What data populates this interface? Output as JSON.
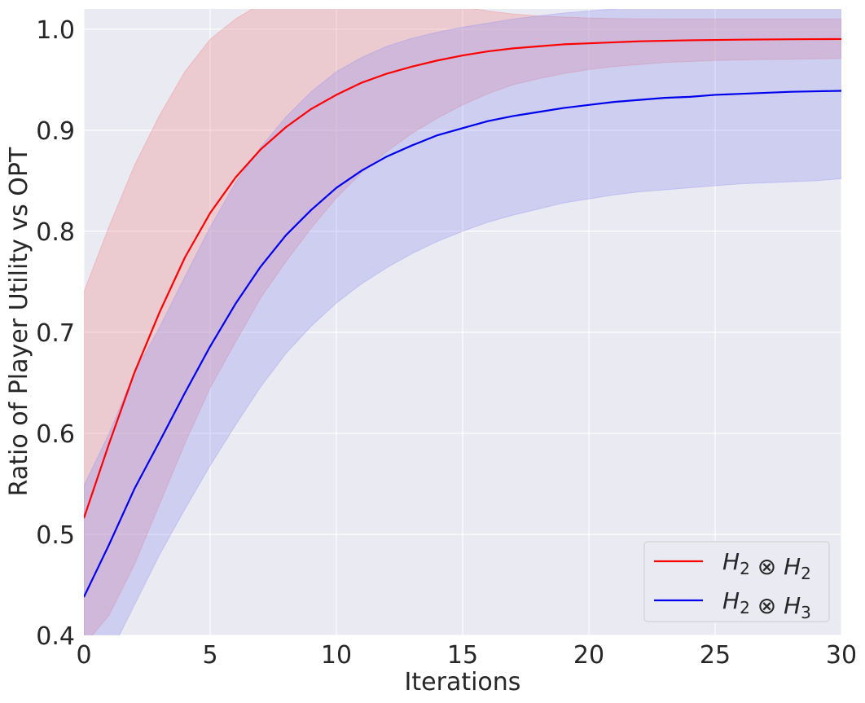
{
  "chart_data": {
    "type": "line",
    "xlabel": "Iterations",
    "ylabel": "Ratio of Player Utility vs OPT",
    "xlim": [
      0,
      30
    ],
    "ylim": [
      0.4,
      1.02
    ],
    "xticks": [
      0,
      5,
      10,
      15,
      20,
      25,
      30
    ],
    "xtick_labels": [
      "0",
      "5",
      "10",
      "15",
      "20",
      "25",
      "30"
    ],
    "yticks": [
      0.4,
      0.5,
      0.6,
      0.7,
      0.8,
      0.9,
      1.0
    ],
    "ytick_labels": [
      "0.4",
      "0.5",
      "0.6",
      "0.7",
      "0.8",
      "0.9",
      "1.0"
    ],
    "grid": true,
    "background": "#eaeaf2",
    "legend_position": "bottom-right",
    "x": [
      0,
      1,
      2,
      3,
      4,
      5,
      6,
      7,
      8,
      9,
      10,
      11,
      12,
      13,
      14,
      15,
      16,
      17,
      18,
      19,
      20,
      21,
      22,
      23,
      24,
      25,
      26,
      27,
      28,
      29,
      30
    ],
    "series": [
      {
        "legend_base": "H",
        "legend_sub1": "2",
        "legend_op": "⊗",
        "legend_sub2": "2",
        "color": "#ff0000",
        "band_color": "#f08080",
        "values": [
          0.516,
          0.59,
          0.66,
          0.72,
          0.774,
          0.818,
          0.853,
          0.881,
          0.903,
          0.921,
          0.935,
          0.947,
          0.956,
          0.963,
          0.969,
          0.974,
          0.978,
          0.981,
          0.983,
          0.985,
          0.986,
          0.987,
          0.988,
          0.9885,
          0.989,
          0.9893,
          0.9896,
          0.9898,
          0.99,
          0.9901,
          0.9902
        ],
        "lower": [
          0.39,
          0.42,
          0.47,
          0.53,
          0.59,
          0.645,
          0.69,
          0.734,
          0.77,
          0.803,
          0.833,
          0.858,
          0.879,
          0.897,
          0.912,
          0.925,
          0.936,
          0.945,
          0.951,
          0.956,
          0.96,
          0.963,
          0.965,
          0.967,
          0.968,
          0.969,
          0.9695,
          0.97,
          0.9703,
          0.9706,
          0.971
        ],
        "upper": [
          0.74,
          0.805,
          0.865,
          0.915,
          0.958,
          0.99,
          1.01,
          1.025,
          1.03,
          1.032,
          1.033,
          1.032,
          1.03,
          1.028,
          1.026,
          1.022,
          1.018,
          1.015,
          1.013,
          1.012,
          1.011,
          1.0105,
          1.0102,
          1.0101,
          1.0101,
          1.0101,
          1.0101,
          1.0101,
          1.0101,
          1.0101,
          1.0101
        ]
      },
      {
        "legend_base": "H",
        "legend_sub1": "2",
        "legend_op": "⊗",
        "legend_sub2": "3",
        "color": "#0000ee",
        "band_color": "#8f8ff0",
        "values": [
          0.438,
          0.49,
          0.545,
          0.592,
          0.64,
          0.686,
          0.728,
          0.765,
          0.796,
          0.821,
          0.843,
          0.86,
          0.874,
          0.885,
          0.895,
          0.902,
          0.909,
          0.914,
          0.918,
          0.922,
          0.925,
          0.928,
          0.93,
          0.932,
          0.933,
          0.935,
          0.936,
          0.937,
          0.938,
          0.9385,
          0.939
        ],
        "lower": [
          0.33,
          0.38,
          0.43,
          0.48,
          0.525,
          0.568,
          0.608,
          0.646,
          0.679,
          0.706,
          0.729,
          0.748,
          0.764,
          0.778,
          0.79,
          0.8,
          0.809,
          0.816,
          0.822,
          0.828,
          0.832,
          0.836,
          0.839,
          0.841,
          0.843,
          0.845,
          0.847,
          0.848,
          0.849,
          0.85,
          0.852
        ],
        "upper": [
          0.548,
          0.6,
          0.66,
          0.705,
          0.755,
          0.804,
          0.848,
          0.883,
          0.913,
          0.938,
          0.958,
          0.972,
          0.983,
          0.991,
          0.997,
          1.002,
          1.006,
          1.01,
          1.013,
          1.016,
          1.018,
          1.02,
          1.022,
          1.024,
          1.025,
          1.026,
          1.027,
          1.028,
          1.029,
          1.03,
          1.03
        ]
      }
    ]
  }
}
